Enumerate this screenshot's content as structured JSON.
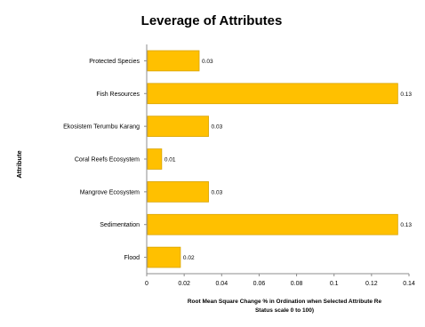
{
  "chart_data": {
    "type": "bar",
    "orientation": "horizontal",
    "title": "Leverage of Attributes",
    "xlabel": "Root Mean Square Change % in Ordination when Selected Attribute Re Status scale 0 to 100)",
    "xlabel_lines": [
      "Root Mean Square Change % in Ordination when Selected Attribute Re",
      "Status scale 0 to 100)"
    ],
    "ylabel": "Attribute",
    "categories": [
      "Protected Species",
      "Fish Resources",
      "Ekosistem Terumbu Karang",
      "Coral Reefs Ecosystem",
      "Mangrove Ecosystem",
      "Sedimentation",
      "Flood"
    ],
    "values": [
      0.028,
      0.134,
      0.033,
      0.008,
      0.033,
      0.134,
      0.018
    ],
    "data_labels": [
      "0.03",
      "0.13",
      "0.03",
      "0.01",
      "0.03",
      "0.13",
      "0.02"
    ],
    "xlim": [
      0,
      0.14
    ],
    "xticks": [
      "0",
      "0.02",
      "0.04",
      "0.06",
      "0.08",
      "0.1",
      "0.12",
      "0.14"
    ],
    "grid": false,
    "legend": "none",
    "bar_color": "#ffc000",
    "bar_edge_color": "#d9a400"
  }
}
